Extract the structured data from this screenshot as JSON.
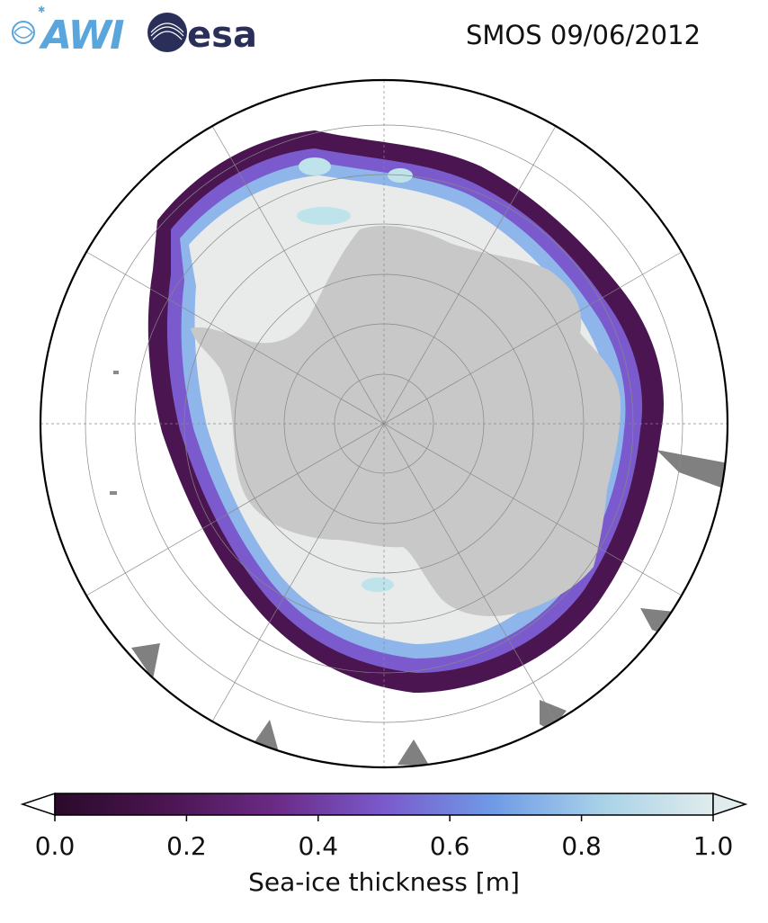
{
  "header": {
    "logo_awi_text": "AWI",
    "logo_esa_text": "esa",
    "title": "SMOS 09/06/2012"
  },
  "colorbar": {
    "ticks": [
      "0.0",
      "0.2",
      "0.4",
      "0.6",
      "0.8",
      "1.0"
    ],
    "tick_values": [
      0.0,
      0.2,
      0.4,
      0.6,
      0.8,
      1.0
    ],
    "label": "Sea-ice thickness [m]",
    "extend": "both",
    "colors": [
      "#2a0a2a",
      "#4a1550",
      "#6a2a85",
      "#7a5acc",
      "#6f9be6",
      "#a9d2e8",
      "#e0ecec"
    ]
  },
  "map": {
    "projection": "south polar stereographic",
    "land_color": "#c8c8c8",
    "missing_color": "#808080",
    "grid_color": "#888888"
  }
}
